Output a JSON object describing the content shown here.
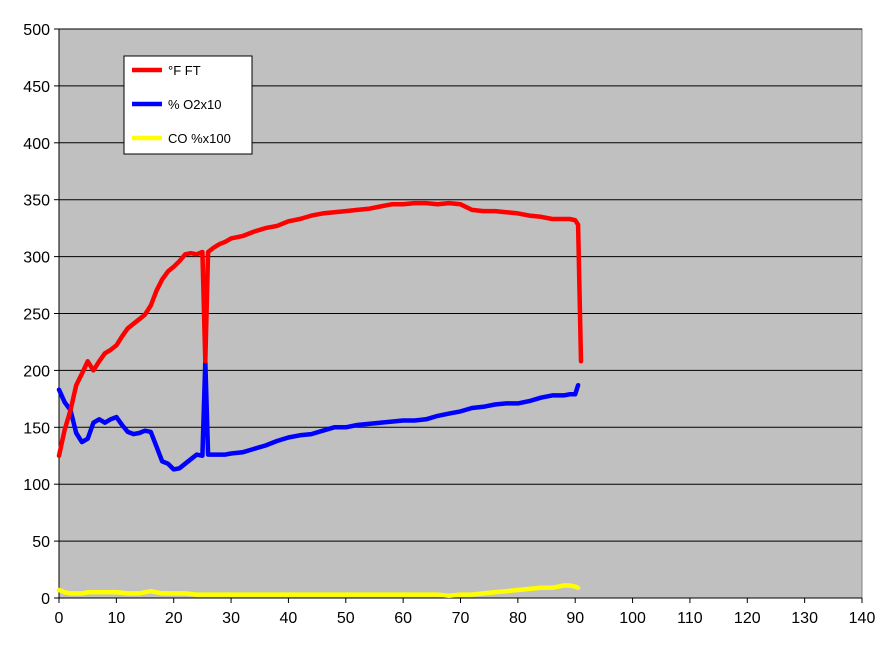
{
  "chart_data": {
    "type": "line",
    "title": "",
    "xlabel": "",
    "ylabel": "",
    "xlim": [
      0,
      140
    ],
    "ylim": [
      0,
      500
    ],
    "x_ticks": [
      0,
      10,
      20,
      30,
      40,
      50,
      60,
      70,
      80,
      90,
      100,
      110,
      120,
      130,
      140
    ],
    "y_ticks": [
      0,
      50,
      100,
      150,
      200,
      250,
      300,
      350,
      400,
      450,
      500
    ],
    "grid": "horizontal",
    "plot_background": "#C0C0C0",
    "legend_position": "top-left",
    "series": [
      {
        "name": "°F FT",
        "color": "#FF0000",
        "x": [
          0,
          1,
          2,
          3,
          4,
          5,
          6,
          7,
          8,
          9,
          10,
          11,
          12,
          13,
          14,
          15,
          16,
          17,
          18,
          19,
          20,
          21,
          22,
          23,
          24,
          25,
          25.5,
          26,
          27,
          28,
          29,
          30,
          32,
          34,
          36,
          38,
          40,
          42,
          44,
          46,
          48,
          50,
          52,
          54,
          56,
          58,
          60,
          62,
          64,
          66,
          68,
          70,
          72,
          74,
          76,
          78,
          80,
          82,
          84,
          86,
          88,
          89,
          90,
          90.5,
          91
        ],
        "y": [
          125,
          148,
          165,
          187,
          197,
          208,
          200,
          208,
          215,
          218,
          222,
          230,
          237,
          241,
          245,
          249,
          257,
          270,
          280,
          287,
          291,
          296,
          302,
          303,
          302,
          304,
          208,
          304,
          308,
          311,
          313,
          316,
          318,
          322,
          325,
          327,
          331,
          333,
          336,
          338,
          339,
          340,
          341,
          342,
          344,
          346,
          346,
          347,
          347,
          346,
          347,
          346,
          341,
          340,
          340,
          339,
          338,
          336,
          335,
          333,
          333,
          333,
          332,
          328,
          208
        ]
      },
      {
        "name": "% O2x10",
        "color": "#0000FF",
        "x": [
          0,
          1,
          2,
          3,
          4,
          5,
          6,
          7,
          8,
          9,
          10,
          11,
          12,
          13,
          14,
          15,
          16,
          17,
          18,
          19,
          20,
          21,
          22,
          23,
          24,
          25,
          25.5,
          26,
          27,
          28,
          29,
          30,
          32,
          34,
          36,
          38,
          40,
          42,
          44,
          46,
          48,
          50,
          52,
          54,
          56,
          58,
          60,
          62,
          64,
          66,
          68,
          70,
          72,
          74,
          76,
          78,
          80,
          82,
          84,
          86,
          88,
          89,
          90,
          90.5
        ],
        "y": [
          183,
          172,
          165,
          145,
          137,
          140,
          154,
          157,
          154,
          157,
          159,
          152,
          146,
          144,
          145,
          147,
          146,
          133,
          120,
          118,
          113,
          114,
          118,
          122,
          126,
          125,
          208,
          126,
          126,
          126,
          126,
          127,
          128,
          131,
          134,
          138,
          141,
          143,
          144,
          147,
          150,
          150,
          152,
          153,
          154,
          155,
          156,
          156,
          157,
          160,
          162,
          164,
          167,
          168,
          170,
          171,
          171,
          173,
          176,
          178,
          178,
          179,
          179,
          187
        ]
      },
      {
        "name": "CO %x100",
        "color": "#FFFF00",
        "x": [
          0,
          1,
          2,
          3,
          4,
          5,
          6,
          8,
          10,
          12,
          14,
          15,
          16,
          18,
          20,
          22,
          24,
          26,
          28,
          30,
          40,
          50,
          60,
          66,
          68,
          70,
          72,
          74,
          76,
          78,
          80,
          82,
          84,
          86,
          88,
          89,
          90,
          90.5
        ],
        "y": [
          7,
          5,
          4,
          4,
          4,
          5,
          5,
          5,
          5,
          4,
          4,
          5,
          6,
          4,
          4,
          4,
          3,
          3,
          3,
          3,
          3,
          3,
          3,
          3,
          2,
          3,
          3,
          4,
          5,
          6,
          7,
          8,
          9,
          9,
          11,
          11,
          10,
          9
        ]
      }
    ]
  }
}
